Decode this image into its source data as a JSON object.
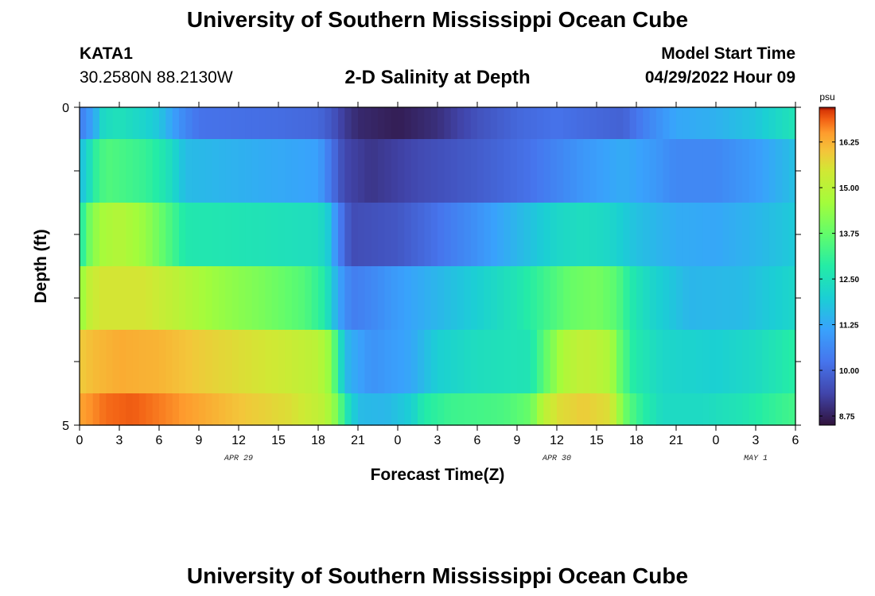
{
  "header": {
    "title": "University of Southern Mississippi Ocean Cube",
    "station": "KATA1",
    "coords": "30.2580N  88.2130W",
    "chart_title": "2-D Salinity at Depth",
    "start_label": "Model Start Time",
    "start_value": "04/29/2022 Hour 09",
    "bottom_title": "University of Southern Mississippi Ocean Cube"
  },
  "chart_data": {
    "type": "heatmap",
    "title": "2-D Salinity at Depth",
    "xlabel": "Forecast Time(Z)",
    "ylabel": "Depth (ft)",
    "xlim": [
      0,
      54
    ],
    "ylim": [
      0,
      5
    ],
    "x_tick_labels": [
      "0",
      "3",
      "6",
      "9",
      "12",
      "15",
      "18",
      "21",
      "0",
      "3",
      "6",
      "9",
      "12",
      "15",
      "18",
      "21",
      "0",
      "3",
      "6"
    ],
    "y_tick_labels": [
      "0",
      "5"
    ],
    "date_labels": [
      {
        "text": "APR 29",
        "x": 12
      },
      {
        "text": "APR 30",
        "x": 36
      },
      {
        "text": "MAY 1",
        "x": 51
      }
    ],
    "colorbar": {
      "unit": "psu",
      "min": 8.5,
      "max": 17.2,
      "ticks": [
        "8.75",
        "10.00",
        "11.25",
        "12.50",
        "13.75",
        "15.00",
        "16.25"
      ]
    },
    "layers": [
      {
        "depth": "0.0-0.5",
        "profile": [
          [
            0,
            10.4
          ],
          [
            0.6,
            10.8
          ],
          [
            1.2,
            11.4
          ],
          [
            1.8,
            12.3
          ],
          [
            3,
            12.5
          ],
          [
            5,
            12.1
          ],
          [
            6,
            11.8
          ],
          [
            7.5,
            10.8
          ],
          [
            9,
            10.2
          ],
          [
            15,
            10.1
          ],
          [
            18,
            10.0
          ],
          [
            19,
            9.7
          ],
          [
            20,
            9.2
          ],
          [
            21,
            8.9
          ],
          [
            24,
            8.7
          ],
          [
            27,
            9.0
          ],
          [
            30,
            9.6
          ],
          [
            33,
            10.0
          ],
          [
            36,
            10.2
          ],
          [
            39,
            10.0
          ],
          [
            41,
            9.9
          ],
          [
            43,
            10.6
          ],
          [
            45,
            11.2
          ],
          [
            48,
            11.4
          ],
          [
            51,
            11.8
          ],
          [
            54,
            12.6
          ]
        ]
      },
      {
        "depth": "0.5-1.5",
        "profile": [
          [
            0,
            11.6
          ],
          [
            0.6,
            12.2
          ],
          [
            1.2,
            13.0
          ],
          [
            2,
            13.5
          ],
          [
            5,
            13.1
          ],
          [
            6.5,
            12.6
          ],
          [
            8,
            11.6
          ],
          [
            12,
            11.4
          ],
          [
            18,
            11.1
          ],
          [
            19,
            10.2
          ],
          [
            20,
            9.4
          ],
          [
            22,
            9.1
          ],
          [
            24,
            9.3
          ],
          [
            26,
            9.5
          ],
          [
            30,
            9.8
          ],
          [
            34,
            10.2
          ],
          [
            38,
            10.9
          ],
          [
            41,
            11.3
          ],
          [
            43,
            11.0
          ],
          [
            45,
            10.6
          ],
          [
            48,
            10.6
          ],
          [
            51,
            11.0
          ],
          [
            54,
            11.7
          ]
        ]
      },
      {
        "depth": "1.5-2.5",
        "profile": [
          [
            0,
            12.5
          ],
          [
            0.6,
            13.8
          ],
          [
            1.5,
            14.6
          ],
          [
            3,
            14.9
          ],
          [
            5,
            14.4
          ],
          [
            6.5,
            13.6
          ],
          [
            8,
            12.7
          ],
          [
            12,
            12.6
          ],
          [
            18,
            12.4
          ],
          [
            18.7,
            12.0
          ],
          [
            19.5,
            10.5
          ],
          [
            20.5,
            9.5
          ],
          [
            24,
            9.7
          ],
          [
            27,
            10.2
          ],
          [
            30,
            10.8
          ],
          [
            33,
            11.5
          ],
          [
            36,
            12.2
          ],
          [
            38,
            12.4
          ],
          [
            40,
            12.2
          ],
          [
            42,
            11.7
          ],
          [
            45,
            11.3
          ],
          [
            48,
            11.2
          ],
          [
            51,
            11.5
          ],
          [
            54,
            11.9
          ]
        ]
      },
      {
        "depth": "2.5-3.5",
        "profile": [
          [
            0,
            14.2
          ],
          [
            0.6,
            15.1
          ],
          [
            1.5,
            15.5
          ],
          [
            5,
            15.5
          ],
          [
            7,
            15.1
          ],
          [
            10,
            14.5
          ],
          [
            14,
            14.0
          ],
          [
            17,
            13.5
          ],
          [
            18.5,
            12.8
          ],
          [
            19.5,
            11.2
          ],
          [
            20.5,
            10.4
          ],
          [
            22,
            10.6
          ],
          [
            24,
            11.0
          ],
          [
            27,
            11.5
          ],
          [
            30,
            12.0
          ],
          [
            33,
            12.6
          ],
          [
            35,
            13.2
          ],
          [
            37,
            13.8
          ],
          [
            39,
            14.0
          ],
          [
            40.5,
            13.6
          ],
          [
            41.5,
            12.8
          ],
          [
            43,
            12.2
          ],
          [
            46,
            11.5
          ],
          [
            50,
            11.6
          ],
          [
            54,
            12.2
          ]
        ]
      },
      {
        "depth": "3.5-4.5",
        "profile": [
          [
            0,
            15.9
          ],
          [
            1,
            16.1
          ],
          [
            3,
            16.3
          ],
          [
            6,
            16.2
          ],
          [
            10,
            15.8
          ],
          [
            15,
            15.4
          ],
          [
            18,
            15.0
          ],
          [
            19,
            14.3
          ],
          [
            19.6,
            12.5
          ],
          [
            20.3,
            11.4
          ],
          [
            22,
            10.8
          ],
          [
            25,
            11.2
          ],
          [
            27,
            12.0
          ],
          [
            30,
            12.4
          ],
          [
            34,
            12.6
          ],
          [
            35,
            13.6
          ],
          [
            36.5,
            14.8
          ],
          [
            38,
            15.2
          ],
          [
            40,
            14.8
          ],
          [
            40.8,
            13.7
          ],
          [
            41.8,
            12.8
          ],
          [
            44,
            12.2
          ],
          [
            48,
            12.0
          ],
          [
            51,
            12.3
          ],
          [
            54,
            12.9
          ]
        ]
      },
      {
        "depth": "4.5-5.0",
        "profile": [
          [
            0,
            16.4
          ],
          [
            1,
            16.6
          ],
          [
            2,
            16.8
          ],
          [
            4,
            16.9
          ],
          [
            7,
            16.6
          ],
          [
            12,
            16.0
          ],
          [
            16,
            15.6
          ],
          [
            18.5,
            15.0
          ],
          [
            19.5,
            14.0
          ],
          [
            20,
            12.8
          ],
          [
            21,
            11.6
          ],
          [
            23,
            11.5
          ],
          [
            25,
            12.0
          ],
          [
            26,
            12.8
          ],
          [
            28,
            13.2
          ],
          [
            32,
            13.4
          ],
          [
            34,
            13.8
          ],
          [
            35,
            15.0
          ],
          [
            36,
            15.6
          ],
          [
            38,
            15.9
          ],
          [
            40,
            15.6
          ],
          [
            40.6,
            14.6
          ],
          [
            41.4,
            13.6
          ],
          [
            42.5,
            12.9
          ],
          [
            44,
            12.3
          ],
          [
            47,
            12.3
          ],
          [
            50,
            12.6
          ],
          [
            52,
            13.0
          ],
          [
            54,
            13.3
          ]
        ]
      }
    ]
  }
}
